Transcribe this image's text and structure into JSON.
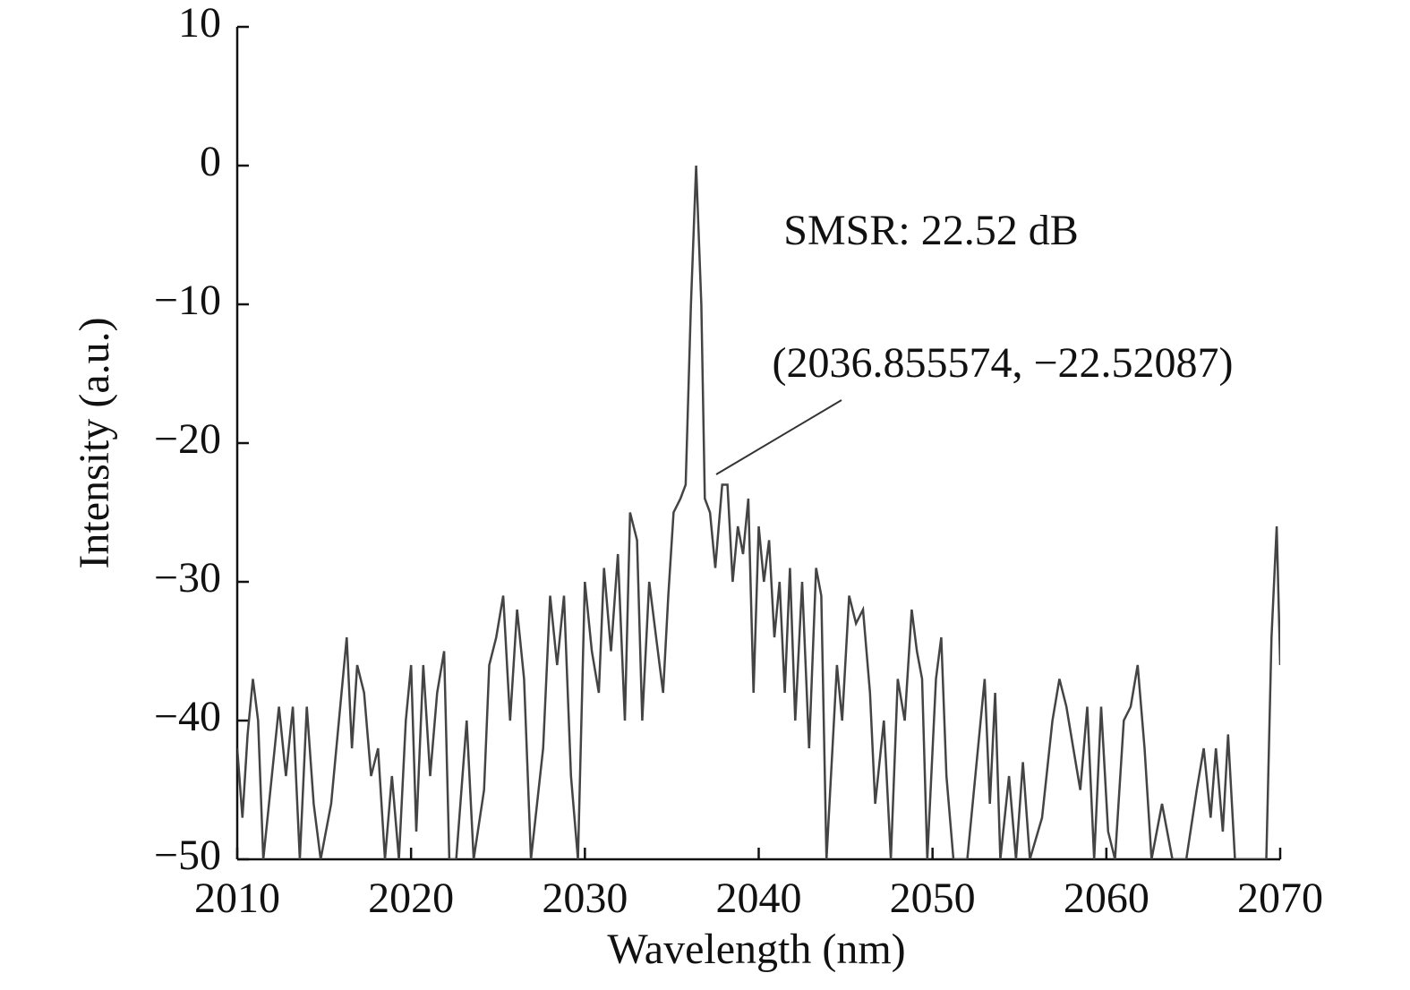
{
  "chart_data": {
    "type": "line",
    "x_label": "Wavelength (nm)",
    "y_label": "Intensity (a.u.)",
    "annotations": [
      "SMSR: 22.52 dB",
      "(2036.855574, −22.52087)"
    ],
    "xlim": [
      2010,
      2070
    ],
    "xticks": [
      2010,
      2020,
      2030,
      2040,
      2050,
      2060,
      2070
    ],
    "ylim": [
      -50,
      10
    ],
    "yticks": [
      {
        "value": -50,
        "label": "−50"
      },
      {
        "value": -40,
        "label": "−40"
      },
      {
        "value": -30,
        "label": "−30"
      },
      {
        "value": -20,
        "label": "−20"
      },
      {
        "value": -10,
        "label": "−10"
      },
      0,
      10
    ],
    "grid": false,
    "series": [
      {
        "color": "#444444",
        "x": [
          2010.0,
          2010.3,
          2010.6,
          2010.9,
          2011.2,
          2011.5,
          2012.4,
          2012.8,
          2013.2,
          2013.6,
          2014.0,
          2014.4,
          2014.8,
          2015.4,
          2016.0,
          2016.3,
          2016.6,
          2016.9,
          2017.3,
          2017.7,
          2018.1,
          2018.5,
          2018.9,
          2019.3,
          2019.7,
          2020.0,
          2020.3,
          2020.7,
          2021.1,
          2021.5,
          2021.9,
          2022.2,
          2022.6,
          2023.2,
          2023.6,
          2024.2,
          2024.5,
          2024.9,
          2025.3,
          2025.7,
          2026.1,
          2026.5,
          2026.9,
          2027.6,
          2028.0,
          2028.4,
          2028.8,
          2029.2,
          2029.6,
          2030.0,
          2030.4,
          2030.8,
          2031.1,
          2031.5,
          2031.9,
          2032.3,
          2032.6,
          2033.0,
          2033.3,
          2033.7,
          2034.1,
          2034.5,
          2034.8,
          2035.1,
          2035.5,
          2035.8,
          2036.1,
          2036.4,
          2036.7,
          2036.9,
          2037.2,
          2037.5,
          2037.9,
          2038.2,
          2038.5,
          2038.8,
          2039.1,
          2039.4,
          2039.7,
          2040.0,
          2040.3,
          2040.6,
          2040.9,
          2041.2,
          2041.5,
          2041.8,
          2042.1,
          2042.5,
          2042.9,
          2043.3,
          2043.6,
          2043.9,
          2044.5,
          2044.8,
          2045.2,
          2045.6,
          2046.0,
          2046.4,
          2046.7,
          2047.2,
          2047.6,
          2048.0,
          2048.4,
          2048.8,
          2049.1,
          2049.4,
          2049.7,
          2050.2,
          2050.5,
          2050.8,
          2051.2,
          2052.0,
          2053.0,
          2053.3,
          2053.6,
          2053.9,
          2054.4,
          2054.8,
          2055.2,
          2055.6,
          2056.3,
          2056.9,
          2057.3,
          2057.7,
          2058.1,
          2058.5,
          2058.9,
          2059.3,
          2059.7,
          2060.1,
          2060.5,
          2061.0,
          2061.4,
          2061.8,
          2062.2,
          2062.6,
          2063.2,
          2063.8,
          2064.6,
          2065.2,
          2065.6,
          2066.0,
          2066.3,
          2066.7,
          2067.0,
          2067.4,
          2068.2,
          2069.2,
          2069.5,
          2069.8,
          2070.0
        ],
        "values": [
          -42,
          -47,
          -41,
          -37,
          -40,
          -50,
          -39,
          -44,
          -39,
          -50,
          -39,
          -46,
          -50,
          -46,
          -38,
          -34,
          -42,
          -36,
          -38,
          -44,
          -42,
          -50,
          -44,
          -50,
          -40,
          -36,
          -48,
          -36,
          -44,
          -38,
          -35,
          -50,
          -50,
          -40,
          -50,
          -45,
          -36,
          -34,
          -31,
          -40,
          -32,
          -37,
          -50,
          -42,
          -31,
          -36,
          -31,
          -44,
          -50,
          -30,
          -35,
          -38,
          -29,
          -35,
          -28,
          -40,
          -25,
          -27,
          -40,
          -30,
          -34,
          -38,
          -31,
          -25,
          -24,
          -23,
          -10,
          0,
          -10,
          -24,
          -25,
          -29,
          -23,
          -23,
          -30,
          -26,
          -28,
          -24,
          -38,
          -26,
          -30,
          -27,
          -34,
          -30,
          -38,
          -29,
          -40,
          -30,
          -42,
          -29,
          -31,
          -50,
          -36,
          -40,
          -31,
          -33,
          -32,
          -38,
          -46,
          -40,
          -50,
          -37,
          -40,
          -32,
          -35,
          -37,
          -50,
          -37,
          -34,
          -44,
          -50,
          -50,
          -37,
          -46,
          -38,
          -50,
          -44,
          -50,
          -43,
          -50,
          -47,
          -40,
          -37,
          -39,
          -42,
          -45,
          -39,
          -50,
          -39,
          -48,
          -50,
          -40,
          -39,
          -36,
          -42,
          -50,
          -46,
          -50,
          -50,
          -45,
          -42,
          -47,
          -42,
          -48,
          -41,
          -50,
          -50,
          -50,
          -34,
          -26,
          -36
        ]
      }
    ]
  }
}
